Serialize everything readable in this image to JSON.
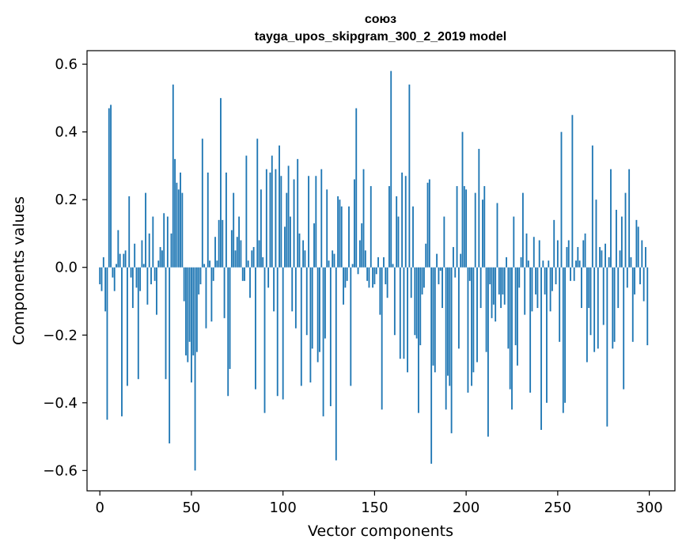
{
  "chart_data": {
    "type": "bar",
    "title": "союз",
    "subtitle": "tayga_upos_skipgram_300_2_2019 model",
    "xlabel": "Vector components",
    "ylabel": "Components values",
    "xlim": [
      -7,
      314
    ],
    "ylim": [
      -0.66,
      0.64
    ],
    "xticks": [
      0,
      50,
      100,
      150,
      200,
      250,
      300
    ],
    "yticks": [
      -0.6,
      -0.4,
      -0.2,
      0.0,
      0.2,
      0.4,
      0.6
    ],
    "ytick_labels": [
      "−0.6",
      "−0.4",
      "−0.2",
      "0.0",
      "0.2",
      "0.4",
      "0.6"
    ],
    "bar_color": "#1f77b4",
    "grid": false,
    "values": [
      -0.05,
      -0.07,
      0.03,
      -0.13,
      -0.45,
      0.47,
      0.48,
      -0.03,
      -0.07,
      0.01,
      0.11,
      0.04,
      -0.44,
      0.04,
      0.05,
      -0.35,
      0.21,
      -0.03,
      -0.12,
      0.07,
      -0.06,
      -0.33,
      -0.07,
      0.08,
      0.01,
      0.22,
      -0.11,
      0.1,
      -0.05,
      0.15,
      -0.04,
      -0.14,
      0.02,
      0.06,
      0.05,
      0.16,
      -0.33,
      0.15,
      -0.52,
      0.1,
      0.54,
      0.32,
      0.25,
      0.23,
      0.28,
      0.22,
      -0.1,
      -0.26,
      -0.28,
      -0.22,
      -0.34,
      -0.26,
      -0.6,
      -0.25,
      -0.08,
      -0.05,
      0.38,
      0.01,
      -0.18,
      0.28,
      0.02,
      -0.16,
      -0.04,
      0.09,
      0.02,
      0.14,
      0.5,
      0.14,
      -0.15,
      0.28,
      -0.38,
      -0.3,
      0.11,
      0.22,
      0.05,
      0.09,
      0.15,
      0.08,
      -0.04,
      -0.04,
      0.33,
      0.02,
      -0.09,
      0.05,
      0.06,
      -0.36,
      0.38,
      0.08,
      0.23,
      0.03,
      -0.43,
      0.29,
      -0.06,
      0.28,
      0.33,
      -0.13,
      0.29,
      -0.38,
      0.36,
      0.27,
      -0.39,
      0.12,
      0.22,
      0.3,
      0.15,
      -0.13,
      0.26,
      -0.18,
      0.32,
      0.1,
      -0.35,
      0.08,
      0.05,
      -0.2,
      0.27,
      -0.34,
      -0.24,
      0.13,
      0.27,
      -0.28,
      -0.25,
      0.29,
      -0.44,
      -0.21,
      0.23,
      0.02,
      -0.41,
      0.05,
      0.04,
      -0.57,
      0.21,
      0.2,
      0.18,
      -0.11,
      -0.06,
      -0.04,
      0.18,
      -0.35,
      0.01,
      0.26,
      0.47,
      -0.02,
      0.08,
      0.13,
      0.29,
      0.05,
      -0.04,
      -0.06,
      0.24,
      -0.06,
      -0.05,
      -0.02,
      0.03,
      -0.14,
      -0.42,
      0.03,
      -0.05,
      -0.09,
      0.24,
      0.58,
      0.01,
      -0.2,
      0.21,
      0.15,
      -0.27,
      0.28,
      -0.27,
      0.27,
      -0.31,
      0.54,
      -0.09,
      0.18,
      -0.2,
      -0.21,
      -0.43,
      -0.23,
      -0.08,
      -0.06,
      0.07,
      0.25,
      0.26,
      -0.58,
      -0.29,
      -0.31,
      0.04,
      -0.05,
      -0.01,
      -0.12,
      0.15,
      -0.42,
      -0.32,
      -0.35,
      -0.49,
      0.06,
      -0.03,
      0.24,
      -0.24,
      0.04,
      0.4,
      0.24,
      0.23,
      -0.37,
      -0.04,
      -0.35,
      -0.31,
      0.22,
      -0.28,
      0.35,
      -0.12,
      0.2,
      0.24,
      -0.25,
      -0.5,
      -0.05,
      -0.15,
      -0.11,
      -0.16,
      0.19,
      -0.08,
      -0.12,
      -0.08,
      -0.11,
      0.03,
      -0.24,
      -0.36,
      -0.42,
      0.15,
      -0.23,
      -0.29,
      -0.06,
      0.03,
      0.22,
      -0.14,
      0.1,
      0.02,
      -0.37,
      -0.13,
      0.09,
      -0.08,
      -0.12,
      0.08,
      -0.48,
      0.02,
      -0.08,
      -0.4,
      0.02,
      -0.13,
      -0.07,
      0.14,
      -0.05,
      0.08,
      -0.22,
      0.4,
      -0.43,
      -0.4,
      0.06,
      0.08,
      -0.04,
      0.45,
      -0.04,
      0.02,
      0.06,
      0.02,
      -0.12,
      0.08,
      0.1,
      -0.28,
      -0.12,
      -0.2,
      0.36,
      -0.25,
      0.2,
      -0.24,
      0.06,
      0.05,
      -0.17,
      0.07,
      -0.47,
      0.03,
      0.29,
      -0.24,
      -0.22,
      0.17,
      -0.12,
      0.05,
      0.15,
      -0.36,
      0.22,
      -0.06,
      0.29,
      0.03,
      -0.22,
      -0.08,
      0.14,
      0.12,
      -0.05,
      0.08,
      -0.1,
      0.06,
      -0.23
    ]
  }
}
